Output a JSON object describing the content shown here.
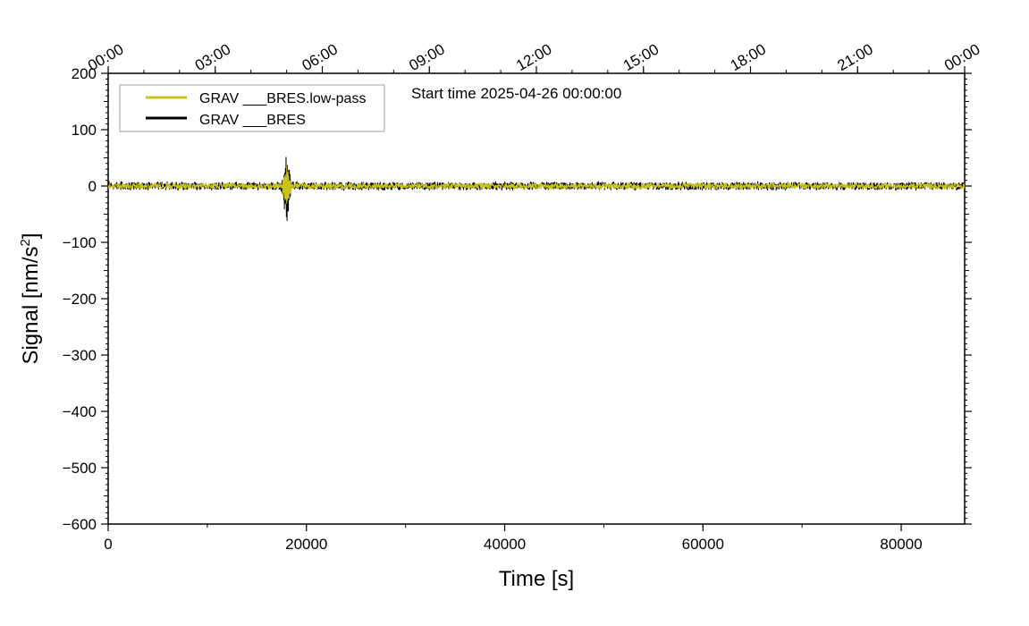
{
  "chart_data": {
    "type": "line",
    "xlabel": "Time [s]",
    "ylabel_main": "Signal [nm/s",
    "ylabel_sup": "2",
    "ylabel_end": "]",
    "annotation": "Start time 2025-04-26 00:00:00",
    "xlim": [
      0,
      86400
    ],
    "ylim": [
      -600,
      200
    ],
    "x_ticks": [
      {
        "value": 0,
        "label": "0"
      },
      {
        "value": 20000,
        "label": "20000"
      },
      {
        "value": 40000,
        "label": "40000"
      },
      {
        "value": 60000,
        "label": "60000"
      },
      {
        "value": 80000,
        "label": "80000"
      }
    ],
    "y_ticks": [
      {
        "value": 200,
        "label": "200"
      },
      {
        "value": 100,
        "label": "100"
      },
      {
        "value": 0,
        "label": "0"
      },
      {
        "value": -100,
        "label": "−100"
      },
      {
        "value": -200,
        "label": "−200"
      },
      {
        "value": -300,
        "label": "−300"
      },
      {
        "value": -400,
        "label": "−400"
      },
      {
        "value": -500,
        "label": "−500"
      },
      {
        "value": -600,
        "label": "−600"
      }
    ],
    "top_ticks": [
      {
        "value": 0,
        "label": "00:00"
      },
      {
        "value": 10800,
        "label": "03:00"
      },
      {
        "value": 21600,
        "label": "06:00"
      },
      {
        "value": 32400,
        "label": "09:00"
      },
      {
        "value": 43200,
        "label": "12:00"
      },
      {
        "value": 54000,
        "label": "15:00"
      },
      {
        "value": 64800,
        "label": "18:00"
      },
      {
        "value": 75600,
        "label": "21:00"
      },
      {
        "value": 86400,
        "label": "00:00"
      }
    ],
    "legend_position": "top-left",
    "series": [
      {
        "name": "GRAV ___BRES",
        "color": "#000000",
        "noise_amplitude": 8,
        "event": {
          "time": 18000,
          "peak_max": 52,
          "peak_min": -65
        }
      },
      {
        "name": "GRAV ___BRES.low-pass",
        "color": "#c8c31a",
        "noise_amplitude": 6,
        "event": {
          "time": 18000,
          "peak_max": 30,
          "peak_min": -38
        }
      }
    ]
  }
}
